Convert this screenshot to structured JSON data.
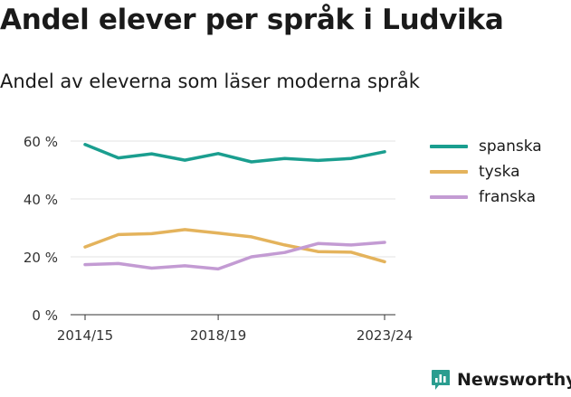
{
  "title": "Andel elever per språk i Ludvika",
  "subtitle": "Andel av eleverna som läser moderna språk",
  "brand": {
    "name": "Newsworthy",
    "color": "#2a9d8f",
    "icon": "bar-chart-logo-icon"
  },
  "chart_data": {
    "type": "line",
    "x": [
      "2014/15",
      "2015/16",
      "2016/17",
      "2017/18",
      "2018/19",
      "2019/20",
      "2020/21",
      "2021/22",
      "2022/23",
      "2023/24"
    ],
    "x_tick_labels": [
      "2014/15",
      "2018/19",
      "2023/24"
    ],
    "y_ticks": [
      0,
      20,
      40,
      60
    ],
    "y_tick_labels": [
      "0 %",
      "20 %",
      "40 %",
      "60 %"
    ],
    "ylim": [
      0,
      60
    ],
    "grid": true,
    "legend_position": "right",
    "series": [
      {
        "name": "spanska",
        "color": "#1a9e8f",
        "values": [
          58.8,
          54.2,
          55.6,
          53.4,
          55.7,
          52.8,
          54.0,
          53.3,
          54.0,
          56.3
        ]
      },
      {
        "name": "tyska",
        "color": "#e4b35c",
        "values": [
          23.4,
          27.7,
          28.0,
          29.4,
          28.2,
          26.9,
          24.1,
          21.8,
          21.6,
          18.3
        ]
      },
      {
        "name": "franska",
        "color": "#c39bd3",
        "values": [
          17.3,
          17.7,
          16.1,
          16.9,
          15.8,
          20.0,
          21.5,
          24.6,
          24.1,
          25.0
        ]
      }
    ]
  }
}
